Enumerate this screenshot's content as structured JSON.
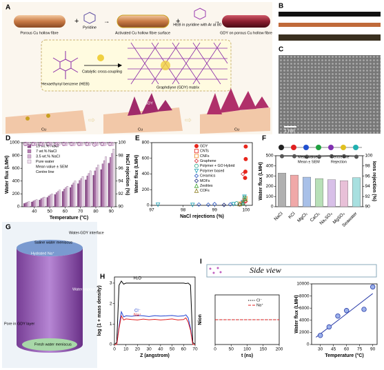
{
  "panel_labels": [
    "A",
    "B",
    "C",
    "D",
    "E",
    "F",
    "G",
    "H",
    "I"
  ],
  "panel_a": {
    "fibre1": "Porous Cu hollow fibre",
    "pyridine": "Pyridine",
    "fibre2": "Activated Cu hollow fibre surface",
    "heb_step": "HEB in pyridine with Ar at 80 °C",
    "fibre3": "GDY on porous Cu hollow fibre",
    "heb": "Hexaethynyl benzene (HEB)",
    "coupling": "Catalytic cross-coupling",
    "matrix": "Graphdiyne (GDY) matrix",
    "cu": "Cu",
    "gdy": "GDY"
  },
  "panel_c": {
    "scale": "1 nm"
  },
  "panel_g": {
    "texts": [
      "Water-GDY interface",
      "Saline water meniscus",
      "Hydrated Na⁺",
      "Water-vapour interface",
      "Pore in GDY layer",
      "Fresh water meniscus"
    ]
  },
  "chart_data": [
    {
      "type": "grouped-bar",
      "xlabel": "Temperature (°C)",
      "ylabel": "Water flux (LMH)",
      "y2label": "NaCl rejection (%)",
      "x": [
        35,
        40,
        45,
        50,
        55,
        60,
        65,
        70,
        75,
        80,
        85,
        90
      ],
      "xlim": [
        32,
        93
      ],
      "xticks": [
        40,
        50,
        60,
        70,
        80,
        90
      ],
      "ylim": [
        0,
        1000
      ],
      "yticks": [
        0,
        200,
        400,
        600,
        800,
        1000
      ],
      "y2lim": [
        90,
        100
      ],
      "y2ticks": [
        90,
        92,
        94,
        96,
        98,
        100
      ],
      "series": [
        {
          "name": "15 wt.% NaCl",
          "color": "#8e4f8c",
          "values": [
            50,
            75,
            105,
            145,
            190,
            240,
            300,
            360,
            420,
            490,
            580,
            680
          ],
          "rejection": [
            99.8,
            99.8,
            99.8,
            99.8,
            99.7,
            99.8,
            99.8,
            99.8,
            99.8,
            99.7,
            99.8,
            99.8
          ]
        },
        {
          "name": "7 wt.% NaCl",
          "color": "#b57fb2",
          "values": [
            60,
            90,
            125,
            170,
            220,
            275,
            340,
            410,
            480,
            560,
            670,
            770
          ],
          "rejection": [
            99.8,
            99.8,
            99.8,
            99.8,
            99.8,
            99.8,
            99.8,
            99.8,
            99.8,
            99.8,
            99.8,
            99.8
          ]
        },
        {
          "name": "3.5 wt.% NaCl",
          "color": "#d6b3d4",
          "values": [
            70,
            100,
            140,
            185,
            240,
            300,
            370,
            440,
            520,
            610,
            720,
            830
          ],
          "rejection": [
            99.8,
            99.8,
            99.8,
            99.8,
            99.8,
            99.8,
            99.8,
            99.8,
            99.8,
            99.8,
            99.8,
            99.8
          ]
        },
        {
          "name": "Pure water",
          "color": "#f1e4f0",
          "values": [
            80,
            110,
            150,
            200,
            260,
            320,
            400,
            470,
            560,
            650,
            780,
            900
          ]
        }
      ],
      "legend_extra": [
        "Mean value ± SEM",
        "Centre line"
      ]
    },
    {
      "type": "scatter",
      "xlabel": "NaCl rejections (%)",
      "ylabel": "Water flux (LMH)",
      "xlim": [
        97,
        100.2
      ],
      "xticks": [
        97,
        98,
        99,
        100
      ],
      "ylim": [
        0,
        800
      ],
      "yticks": [
        0,
        200,
        400,
        600,
        800
      ],
      "series": [
        {
          "name": "GDY",
          "color": "#e8261c",
          "marker": "circle",
          "filled": true,
          "x": [
            99.99,
            99.99,
            99.98,
            99.97
          ],
          "values": [
            750,
            590,
            430,
            350
          ]
        },
        {
          "name": "CNTs",
          "color": "#e8261c",
          "marker": "square",
          "x": [
            99.9,
            99.95
          ],
          "values": [
            30,
            60
          ]
        },
        {
          "name": "CNFs",
          "color": "#f08a24",
          "marker": "square",
          "x": [
            99.8,
            99.98
          ],
          "values": [
            20,
            90
          ]
        },
        {
          "name": "Graphene",
          "color": "#d2232a",
          "marker": "diamond",
          "x": [
            99.9,
            99.99
          ],
          "values": [
            400,
            50
          ]
        },
        {
          "name": "Polymer + GO Hybrid",
          "color": "#2aa88a",
          "marker": "circle",
          "x": [
            99.95,
            99.7
          ],
          "values": [
            100,
            25
          ]
        },
        {
          "name": "Polymer based",
          "color": "#1a9fb3",
          "marker": "triangle-down",
          "x": [
            97.2,
            98.3,
            99.6,
            99.9,
            99.95
          ],
          "values": [
            8,
            5,
            15,
            40,
            110
          ]
        },
        {
          "name": "Ceramics",
          "color": "#2a55c0",
          "marker": "diamond",
          "x": [
            98.5,
            98.8,
            99.0,
            99.5,
            99.9
          ],
          "values": [
            10,
            8,
            15,
            12,
            20
          ]
        },
        {
          "name": "MOFs",
          "color": "#1c2a7a",
          "marker": "diamond",
          "x": [
            99.3,
            99.8
          ],
          "values": [
            5,
            10
          ]
        },
        {
          "name": "Zeolites",
          "color": "#3aa02a",
          "marker": "triangle-up",
          "x": [
            99.9,
            99.97
          ],
          "values": [
            30,
            80
          ]
        },
        {
          "name": "COFs",
          "color": "#8a7a1a",
          "marker": "triangle-up",
          "x": [
            99.8
          ],
          "values": [
            15
          ]
        }
      ]
    },
    {
      "type": "bar",
      "ylabel": "Water flux (LMH)",
      "y2label": "Ions rejection (%)",
      "categories": [
        "NaCl",
        "KCl",
        "MgCl₂",
        "CaCl₂",
        "Na₂SO₄",
        "MgSO₄",
        "Seawater"
      ],
      "values": [
        330,
        310,
        290,
        275,
        265,
        255,
        285
      ],
      "colors": [
        "#b0b0b0",
        "#f0a8a8",
        "#a8c0e8",
        "#b8e0b8",
        "#d8c0e8",
        "#e8c0d8",
        "#a8e0e0"
      ],
      "rejection": [
        99.9,
        99.9,
        99.8,
        99.8,
        99.9,
        99.9,
        99.8
      ],
      "ylim": [
        0,
        500
      ],
      "yticks": [
        0,
        100,
        200,
        300,
        400,
        500
      ],
      "y2lim": [
        90,
        100
      ],
      "y2ticks": [
        90,
        92,
        94,
        96,
        98,
        100
      ],
      "legend_extra": [
        "Mean value",
        "Centre line",
        "Mean ± SEM",
        "Rejection"
      ]
    },
    {
      "type": "line",
      "xlabel": "Z (angstrom)",
      "ylabel": "log (1 + mass density)",
      "xlim": [
        0,
        70
      ],
      "xticks": [
        0,
        10,
        20,
        30,
        40,
        50,
        60,
        70
      ],
      "ylim": [
        0,
        3.3
      ],
      "yticks": [
        0,
        1,
        2,
        3
      ],
      "x": [
        0,
        2,
        4,
        6,
        8,
        10,
        15,
        20,
        25,
        30,
        35,
        40,
        45,
        50,
        55,
        60,
        62,
        64,
        66,
        68,
        70
      ],
      "series": [
        {
          "name": "H₂O",
          "color": "#000000",
          "values": [
            0,
            0.1,
            2.9,
            3.1,
            2.95,
            3,
            3,
            3,
            3,
            3,
            3,
            3,
            3,
            3,
            3,
            3,
            2.98,
            3,
            2.9,
            0.1,
            0
          ]
        },
        {
          "name": "Cl⁻",
          "color": "#1f3fd0",
          "values": [
            0,
            0,
            0.9,
            1.6,
            1.35,
            1.4,
            1.38,
            1.42,
            1.4,
            1.37,
            1.41,
            1.39,
            1.4,
            1.42,
            1.38,
            1.4,
            1.45,
            1.3,
            0.8,
            0,
            0
          ]
        },
        {
          "name": "Na⁺",
          "color": "#e01c1c",
          "values": [
            0,
            0,
            0.8,
            1.4,
            1.2,
            1.25,
            1.22,
            1.2,
            1.24,
            1.21,
            1.23,
            1.2,
            1.22,
            1.25,
            1.2,
            1.22,
            1.3,
            1.1,
            0.7,
            0,
            0
          ]
        }
      ]
    },
    {
      "type": "line",
      "title": "Side view",
      "xlabel": "t (ns)",
      "ylabel": "Nion",
      "xlim": [
        0,
        200
      ],
      "xticks": [
        0,
        50,
        100,
        150,
        200
      ],
      "ylim": [
        -1,
        1
      ],
      "x": [
        0,
        200
      ],
      "series": [
        {
          "name": "Cl⁻",
          "color": "#000000",
          "dash": "1.5 1.5",
          "values": [
            0,
            0
          ]
        },
        {
          "name": "Na⁺",
          "color": "#e01c1c",
          "dash": "4 2",
          "values": [
            0,
            0
          ]
        }
      ]
    },
    {
      "type": "scatter-fit",
      "xlabel": "Temperature (°C)",
      "ylabel": "Water flux (LMH)",
      "xlim": [
        20,
        95
      ],
      "xticks": [
        30,
        45,
        60,
        75,
        90
      ],
      "ylim": [
        0,
        10000
      ],
      "yticks": [
        0,
        2000,
        4000,
        6000,
        8000,
        10000
      ],
      "color": "#2a3ca8",
      "x": [
        30,
        40,
        50,
        60,
        80,
        90
      ],
      "values": [
        1500,
        2900,
        4700,
        5600,
        5800,
        9500
      ],
      "fit": {
        "x": [
          25,
          90
        ],
        "values": [
          1200,
          8400
        ]
      }
    }
  ]
}
